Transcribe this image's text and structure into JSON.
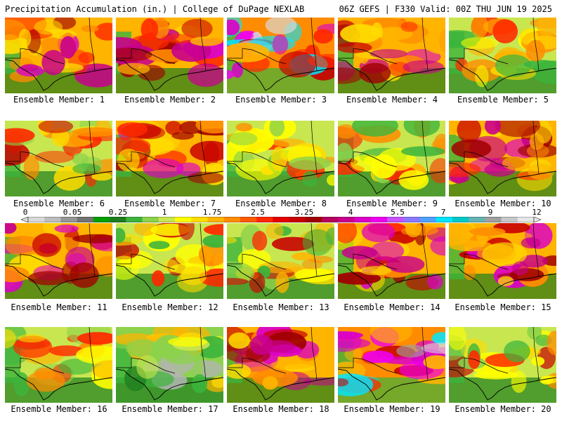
{
  "header": {
    "title_left": "Precipitation Accumulation (in.) | College of DuPage NEXLAB",
    "title_right": "06Z GEFS | F330 Valid: 00Z THU JUN 19 2025"
  },
  "colorbar": {
    "labels": [
      "0",
      "0.05",
      "0.25",
      "1",
      "1.75",
      "2.5",
      "3.25",
      "4",
      "5.5",
      "7",
      "9",
      "12"
    ],
    "colors": [
      "#d9d9d9",
      "#bdbdbd",
      "#969696",
      "#737373",
      "#00a000",
      "#1e7d1e",
      "#3cb43c",
      "#8cd24b",
      "#c8e650",
      "#ffff00",
      "#ffdc00",
      "#ffb400",
      "#ff8c00",
      "#ff5a00",
      "#ff2800",
      "#e60000",
      "#c80000",
      "#a00000",
      "#b4005a",
      "#c8008c",
      "#dc00c8",
      "#f000f0",
      "#c850ff",
      "#8c78ff",
      "#50a0ff",
      "#00e6ff",
      "#00c8c8",
      "#64b4b4",
      "#a0a0a0",
      "#c8c8c8",
      "#e6e6e6"
    ]
  },
  "panels": [
    {
      "label": "Ensemble Member: 1",
      "style": "wet"
    },
    {
      "label": "Ensemble Member: 2",
      "style": "wet"
    },
    {
      "label": "Ensemble Member: 3",
      "style": "extreme"
    },
    {
      "label": "Ensemble Member: 4",
      "style": "wet"
    },
    {
      "label": "Ensemble Member: 5",
      "style": "moderate"
    },
    {
      "label": "Ensemble Member: 6",
      "style": "moderate"
    },
    {
      "label": "Ensemble Member: 7",
      "style": "wet"
    },
    {
      "label": "Ensemble Member: 8",
      "style": "moderate"
    },
    {
      "label": "Ensemble Member: 9",
      "style": "moderate"
    },
    {
      "label": "Ensemble Member: 10",
      "style": "wet"
    },
    {
      "label": "Ensemble Member: 11",
      "style": "wet"
    },
    {
      "label": "Ensemble Member: 12",
      "style": "moderate"
    },
    {
      "label": "Ensemble Member: 13",
      "style": "moderate"
    },
    {
      "label": "Ensemble Member: 14",
      "style": "wet"
    },
    {
      "label": "Ensemble Member: 15",
      "style": "wet"
    },
    {
      "label": "Ensemble Member: 16",
      "style": "moderate"
    },
    {
      "label": "Ensemble Member: 17",
      "style": "dry"
    },
    {
      "label": "Ensemble Member: 18",
      "style": "wet"
    },
    {
      "label": "Ensemble Member: 19",
      "style": "extreme"
    },
    {
      "label": "Ensemble Member: 20",
      "style": "moderate"
    }
  ]
}
